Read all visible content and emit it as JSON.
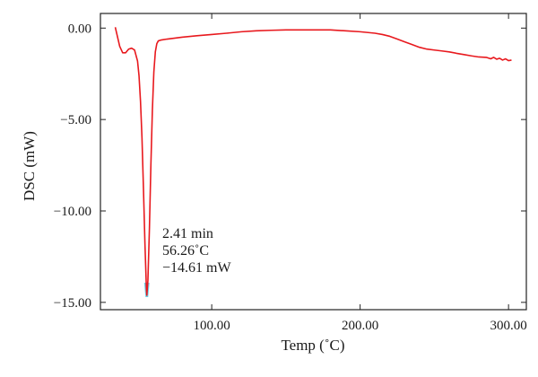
{
  "chart_data": {
    "type": "line",
    "title": "",
    "xlabel": "Temp (˚C)",
    "ylabel": "DSC (mW)",
    "xlim": [
      25,
      312
    ],
    "ylim": [
      -15.4,
      0.8
    ],
    "grid": false,
    "x_ticks": [
      100,
      200,
      300
    ],
    "x_tick_labels": [
      "100.00",
      "200.00",
      "300.00"
    ],
    "y_ticks": [
      0,
      -5,
      -10,
      -15
    ],
    "y_tick_labels": [
      "0.00",
      "−5.00",
      "−10.00",
      "−15.00"
    ],
    "series": [
      {
        "color": "#e8191e",
        "x": [
          35,
          36,
          38,
          40,
          42,
          44,
          46,
          48,
          50,
          51,
          52,
          53,
          54,
          55,
          56,
          56.26,
          57,
          58,
          59,
          60,
          61,
          62,
          63,
          64,
          66,
          70,
          80,
          90,
          100,
          110,
          120,
          130,
          140,
          150,
          160,
          170,
          180,
          190,
          200,
          210,
          215,
          220,
          225,
          230,
          235,
          240,
          245,
          250,
          255,
          260,
          265,
          270,
          275,
          280,
          285,
          288,
          290,
          292,
          294,
          296,
          298,
          300,
          302
        ],
        "y": [
          0.05,
          -0.3,
          -1.0,
          -1.35,
          -1.35,
          -1.15,
          -1.1,
          -1.2,
          -1.8,
          -2.6,
          -4.0,
          -6.0,
          -8.8,
          -11.8,
          -14.3,
          -14.61,
          -13.8,
          -11.0,
          -7.5,
          -4.5,
          -2.4,
          -1.3,
          -0.85,
          -0.7,
          -0.65,
          -0.6,
          -0.5,
          -0.42,
          -0.35,
          -0.28,
          -0.2,
          -0.15,
          -0.12,
          -0.1,
          -0.1,
          -0.1,
          -0.1,
          -0.15,
          -0.2,
          -0.28,
          -0.35,
          -0.45,
          -0.6,
          -0.75,
          -0.9,
          -1.05,
          -1.15,
          -1.2,
          -1.25,
          -1.3,
          -1.38,
          -1.45,
          -1.52,
          -1.58,
          -1.6,
          -1.68,
          -1.6,
          -1.7,
          -1.65,
          -1.75,
          -1.68,
          -1.78,
          -1.75
        ]
      }
    ],
    "annotation": {
      "x": 56.26,
      "y": -14.61,
      "lines": [
        "2.41 min",
        "56.26˚C",
        "−14.61 mW"
      ]
    }
  }
}
